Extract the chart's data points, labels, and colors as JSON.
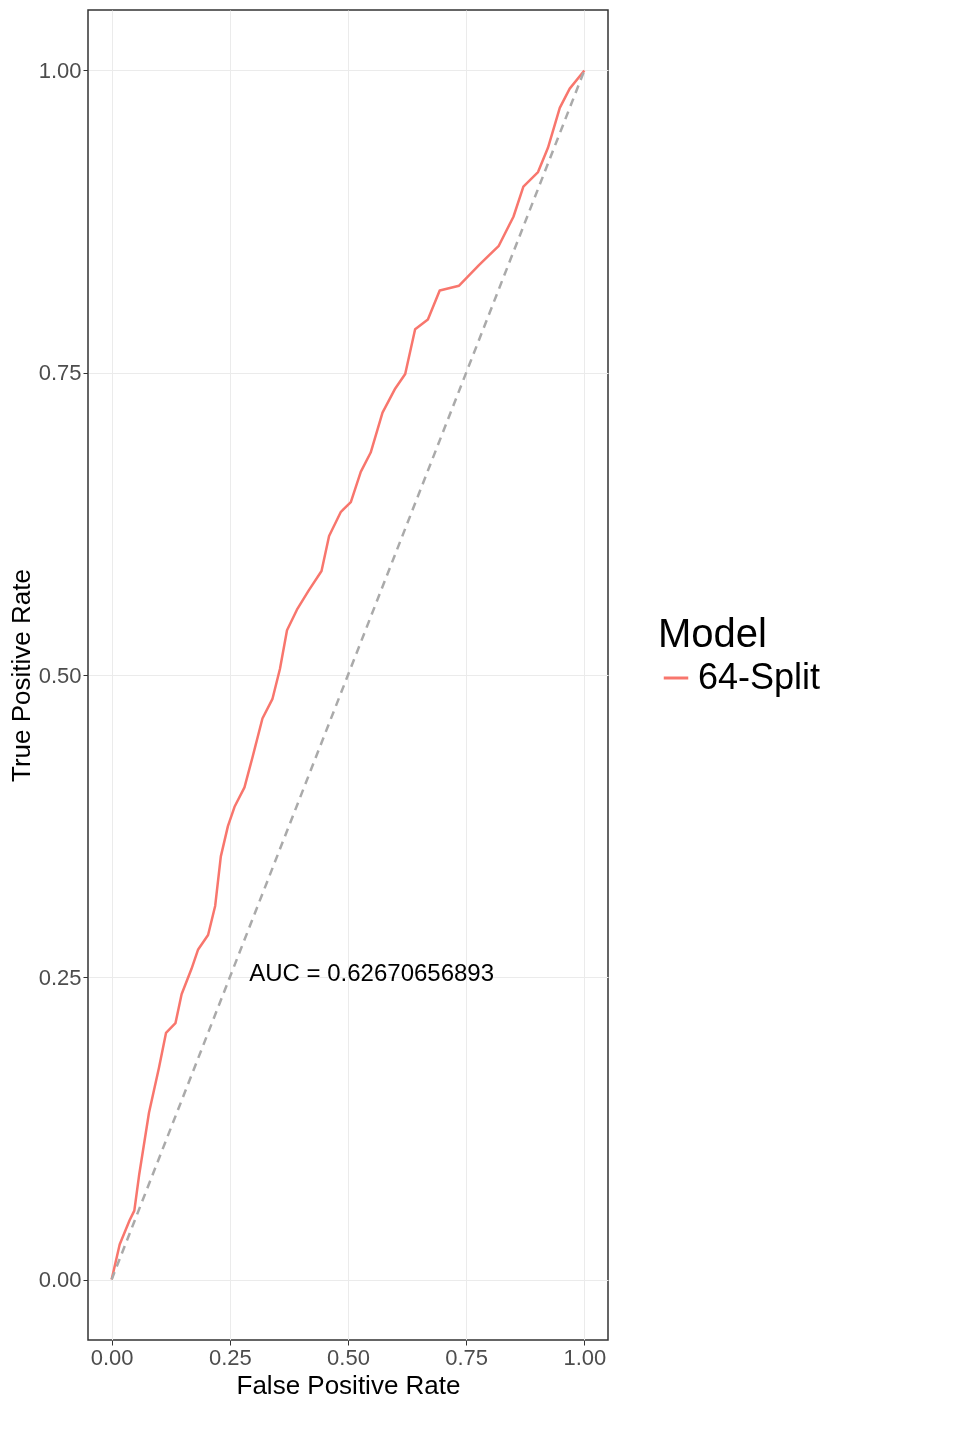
{
  "chart_data": {
    "type": "line",
    "xlabel": "False Positive Rate",
    "ylabel": "True Positive Rate",
    "legend_title": "Model",
    "legend": "right",
    "grid": true,
    "xlim": [
      -0.05,
      1.05
    ],
    "ylim": [
      -0.05,
      1.05
    ],
    "xticks": [
      {
        "value": 0,
        "label": "0.00"
      },
      {
        "value": 0.25,
        "label": "0.25"
      },
      {
        "value": 0.5,
        "label": "0.50"
      },
      {
        "value": 0.75,
        "label": "0.75"
      },
      {
        "value": 1,
        "label": "1.00"
      }
    ],
    "yticks": [
      {
        "value": 0,
        "label": "0.00"
      },
      {
        "value": 0.25,
        "label": "0.25"
      },
      {
        "value": 0.5,
        "label": "0.50"
      },
      {
        "value": 0.75,
        "label": "0.75"
      },
      {
        "value": 1,
        "label": "1.00"
      }
    ],
    "series": [
      {
        "name": "64-Split",
        "color": "#f8766d",
        "line_style": "solid",
        "x": [
          0,
          0.017,
          0.038,
          0.048,
          0.058,
          0.079,
          0.1,
          0.115,
          0.135,
          0.148,
          0.169,
          0.183,
          0.204,
          0.219,
          0.231,
          0.246,
          0.26,
          0.281,
          0.298,
          0.319,
          0.34,
          0.356,
          0.371,
          0.392,
          0.417,
          0.444,
          0.46,
          0.485,
          0.506,
          0.527,
          0.548,
          0.573,
          0.6,
          0.621,
          0.642,
          0.669,
          0.694,
          0.735,
          0.777,
          0.819,
          0.85,
          0.871,
          0.902,
          0.923,
          0.948,
          0.969,
          1
        ],
        "values": [
          0,
          0.029,
          0.049,
          0.057,
          0.086,
          0.138,
          0.175,
          0.204,
          0.212,
          0.236,
          0.257,
          0.273,
          0.285,
          0.309,
          0.35,
          0.375,
          0.391,
          0.407,
          0.432,
          0.464,
          0.48,
          0.505,
          0.537,
          0.554,
          0.57,
          0.586,
          0.615,
          0.635,
          0.643,
          0.668,
          0.684,
          0.717,
          0.737,
          0.749,
          0.786,
          0.794,
          0.818,
          0.822,
          0.839,
          0.855,
          0.879,
          0.904,
          0.916,
          0.936,
          0.969,
          0.985,
          1
        ]
      },
      {
        "color": "#aaaaaa",
        "line_style": "dashed",
        "x": [
          0,
          1
        ],
        "values": [
          0,
          1
        ]
      }
    ],
    "annotations": [
      "AUC = 0.62670656893"
    ]
  }
}
